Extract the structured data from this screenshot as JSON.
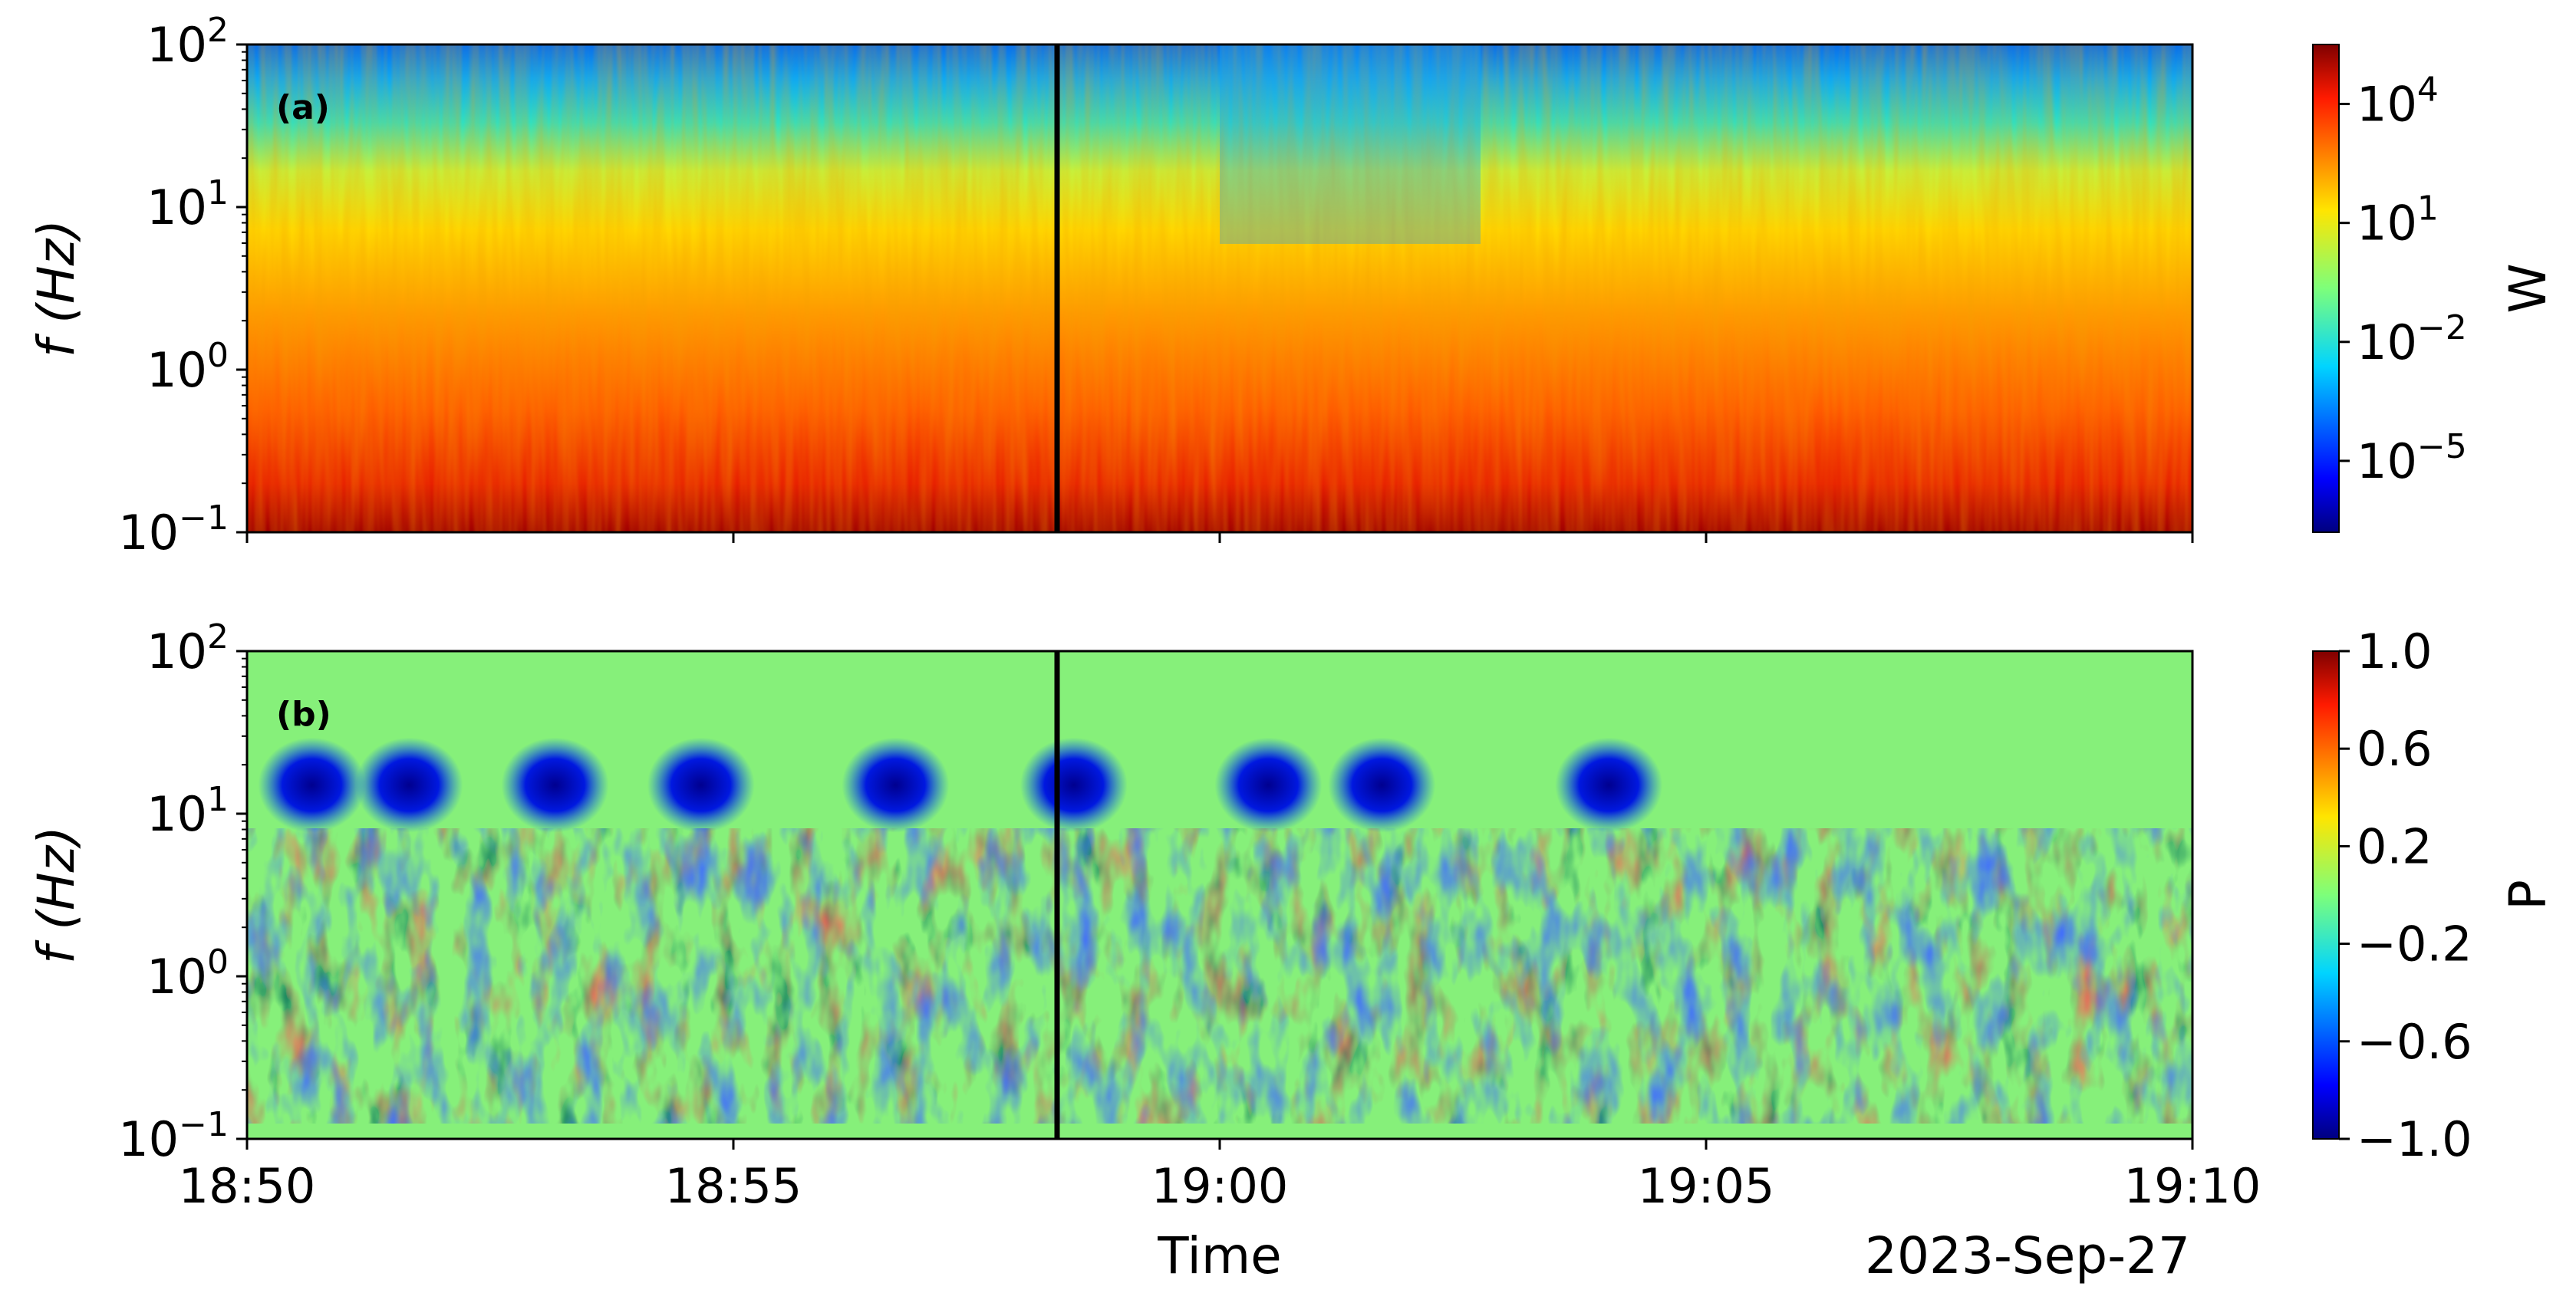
{
  "chart_data": [
    {
      "type": "heatmap",
      "panel_label": "(a)",
      "ylabel": "f (Hz)",
      "y_scale": "log",
      "ylim": [
        0.1,
        100
      ],
      "y_ticks": [
        {
          "mantissa": "10",
          "exp": "2"
        },
        {
          "mantissa": "10",
          "exp": "1"
        },
        {
          "mantissa": "10",
          "exp": "0"
        },
        {
          "mantissa": "10",
          "exp": "−1"
        }
      ],
      "xlim": [
        "18:50",
        "19:10"
      ],
      "colormap": "jet",
      "colorbar": {
        "label": "W",
        "scale": "log",
        "ticks": [
          {
            "mantissa": "10",
            "exp": "4"
          },
          {
            "mantissa": "10",
            "exp": "1"
          },
          {
            "mantissa": "10",
            "exp": "−2"
          },
          {
            "mantissa": "10",
            "exp": "−5"
          }
        ]
      },
      "event_marker_time": "18:58:20",
      "description_of_pattern": "high power at low frequencies (red), decreasing to blue above ~20 Hz; a weaker-power interval around 19:00–19:03"
    },
    {
      "type": "heatmap",
      "panel_label": "(b)",
      "ylabel": "f (Hz)",
      "y_scale": "log",
      "ylim": [
        0.1,
        100
      ],
      "y_ticks": [
        {
          "mantissa": "10",
          "exp": "2"
        },
        {
          "mantissa": "10",
          "exp": "1"
        },
        {
          "mantissa": "10",
          "exp": "0"
        },
        {
          "mantissa": "10",
          "exp": "−1"
        }
      ],
      "xlim": [
        "18:50",
        "19:10"
      ],
      "colormap": "jet",
      "colorbar": {
        "label": "P",
        "range": [
          -1.0,
          1.0
        ],
        "ticks": [
          "1.0",
          "0.6",
          "0.2",
          "−0.2",
          "−0.6",
          "−1.0"
        ]
      },
      "event_marker_time": "18:58:20",
      "blue_patches_times": [
        "18:50:40",
        "18:51:40",
        "18:53:10",
        "18:54:40",
        "18:56:40",
        "18:58:30",
        "19:00:30",
        "19:01:40",
        "19:04:00"
      ],
      "blue_patch_frequency_hz": 15
    }
  ],
  "x_axis": {
    "label": "Time",
    "date": "2023-Sep-27",
    "ticks": [
      "18:50",
      "18:55",
      "19:00",
      "19:05",
      "19:10"
    ]
  },
  "colors": {
    "marker_line": "#000000",
    "background_b": "#86f07a"
  }
}
